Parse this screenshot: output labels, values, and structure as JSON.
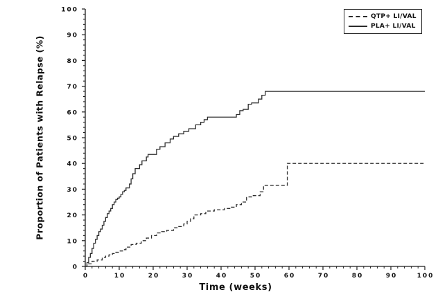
{
  "page": {
    "background": "#ffffff"
  },
  "chart_data": {
    "type": "line",
    "subtype": "step",
    "title": "",
    "xlabel": "Time (weeks)",
    "ylabel": "Proportion of Patients with Relapse (%)",
    "xlim": [
      0,
      100
    ],
    "ylim": [
      0,
      100
    ],
    "grid": false,
    "axis_color": "#1a1a1a",
    "x_ticks": {
      "values": [
        0,
        10,
        20,
        30,
        40,
        50,
        60,
        70,
        80,
        90,
        100
      ],
      "labels": [
        "0",
        "10",
        "20",
        "30",
        "40",
        "50",
        "60",
        "70",
        "80",
        "90",
        "100"
      ],
      "minor_step": 2
    },
    "y_ticks": {
      "values": [
        0,
        10,
        20,
        30,
        40,
        50,
        60,
        70,
        80,
        90,
        100
      ],
      "labels": [
        "0",
        "10",
        "20",
        "30",
        "40",
        "50",
        "60",
        "70",
        "80",
        "90",
        "100"
      ],
      "minor_step": 2
    },
    "legend": {
      "position": "top-right",
      "entries": [
        {
          "label": "QTP+ LI/VAL",
          "line": "dashed"
        },
        {
          "label": "PLA+ LI/VAL",
          "line": "solid"
        }
      ]
    },
    "series": [
      {
        "name": "QTP+ LI/VAL",
        "style": "dashed",
        "color": "#2e2e2e",
        "points": [
          [
            0,
            0
          ],
          [
            0.5,
            0.5
          ],
          [
            1,
            1
          ],
          [
            2,
            2
          ],
          [
            3.5,
            2.5
          ],
          [
            5,
            3.5
          ],
          [
            6,
            4
          ],
          [
            7,
            4.5
          ],
          [
            8,
            5
          ],
          [
            9,
            5.5
          ],
          [
            10,
            6
          ],
          [
            11,
            6.5
          ],
          [
            12,
            7.5
          ],
          [
            13.5,
            8.5
          ],
          [
            15,
            9
          ],
          [
            16.5,
            10
          ],
          [
            18,
            11
          ],
          [
            19.5,
            12
          ],
          [
            21,
            13
          ],
          [
            22.5,
            13.5
          ],
          [
            24,
            14
          ],
          [
            26,
            15
          ],
          [
            27.5,
            15.5
          ],
          [
            29,
            16.5
          ],
          [
            30,
            17.5
          ],
          [
            31,
            18.5
          ],
          [
            32,
            20
          ],
          [
            34,
            20.5
          ],
          [
            35.5,
            21.5
          ],
          [
            38,
            22
          ],
          [
            41,
            22.5
          ],
          [
            43,
            23
          ],
          [
            44.5,
            24
          ],
          [
            46,
            25
          ],
          [
            47.5,
            27
          ],
          [
            49,
            27.5
          ],
          [
            51.5,
            29
          ],
          [
            52.5,
            31.5
          ],
          [
            59.5,
            40
          ],
          [
            100,
            40
          ]
        ]
      },
      {
        "name": "PLA+ LI/VAL",
        "style": "solid",
        "color": "#2e2e2e",
        "points": [
          [
            0,
            0
          ],
          [
            0.5,
            1.5
          ],
          [
            1,
            3.5
          ],
          [
            1.5,
            5
          ],
          [
            2,
            7
          ],
          [
            2.5,
            9
          ],
          [
            3,
            10.5
          ],
          [
            3.5,
            12
          ],
          [
            4,
            13.5
          ],
          [
            4.5,
            14.5
          ],
          [
            5,
            16
          ],
          [
            5.5,
            17.5
          ],
          [
            6,
            19
          ],
          [
            6.5,
            20.5
          ],
          [
            7,
            21.5
          ],
          [
            7.5,
            22.5
          ],
          [
            8,
            24
          ],
          [
            8.5,
            25
          ],
          [
            9,
            26
          ],
          [
            9.5,
            26.5
          ],
          [
            10,
            27
          ],
          [
            10.5,
            28
          ],
          [
            11,
            29
          ],
          [
            11.5,
            29.5
          ],
          [
            12,
            30.5
          ],
          [
            13,
            32
          ],
          [
            13.5,
            34
          ],
          [
            14,
            36
          ],
          [
            14.7,
            38
          ],
          [
            16,
            39.5
          ],
          [
            16.7,
            41
          ],
          [
            18,
            42.5
          ],
          [
            18.5,
            43.5
          ],
          [
            21,
            45.5
          ],
          [
            22,
            46.5
          ],
          [
            23.5,
            48
          ],
          [
            25,
            49.5
          ],
          [
            26,
            50.5
          ],
          [
            27.5,
            51.5
          ],
          [
            29,
            52.5
          ],
          [
            30.5,
            53.5
          ],
          [
            32.5,
            55
          ],
          [
            34,
            56
          ],
          [
            35,
            57
          ],
          [
            36,
            58
          ],
          [
            44.5,
            59
          ],
          [
            45.5,
            60.5
          ],
          [
            46.5,
            61
          ],
          [
            48,
            63
          ],
          [
            49,
            63.5
          ],
          [
            51,
            65
          ],
          [
            52,
            66.5
          ],
          [
            53,
            68
          ],
          [
            100,
            68
          ]
        ]
      }
    ]
  }
}
